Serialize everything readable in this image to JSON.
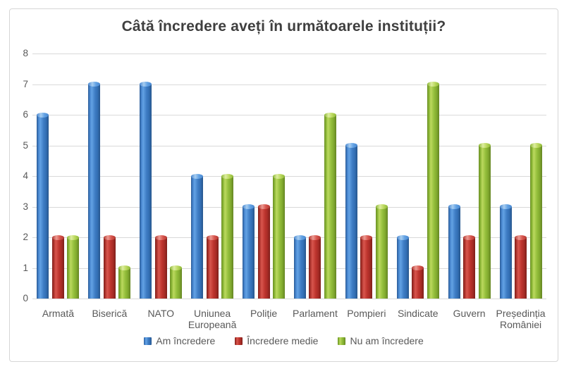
{
  "page": {
    "background_color": "#ffffff",
    "frame_border_color": "#d6d6d6"
  },
  "chart_data": {
    "type": "bar",
    "title": "Câtă încredere aveți în următoarele instituții?",
    "title_color": "#3f3f3f",
    "axis_text_color": "#595959",
    "gridline_color": "#d9d9d9",
    "categories": [
      "Armată",
      "Biserică",
      "NATO",
      "Uniunea Europeană",
      "Poliție",
      "Parlament",
      "Pompieri",
      "Sindicate",
      "Guvern",
      "Președinția României"
    ],
    "series": [
      {
        "name": "Am încredere",
        "color": "#3b7ac3",
        "values": [
          6,
          7,
          7,
          4,
          3,
          2,
          5,
          2,
          3,
          3
        ]
      },
      {
        "name": "Încredere medie",
        "color": "#bd342d",
        "values": [
          2,
          2,
          2,
          2,
          3,
          2,
          2,
          1,
          2,
          2
        ]
      },
      {
        "name": "Nu am încredere",
        "color": "#93be3b",
        "values": [
          2,
          1,
          1,
          4,
          4,
          6,
          3,
          7,
          5,
          5
        ]
      }
    ],
    "xlabel": "",
    "ylabel": "",
    "ylim": [
      0,
      8
    ],
    "y_ticks": [
      0,
      1,
      2,
      3,
      4,
      5,
      6,
      7,
      8
    ],
    "grid": true,
    "legend_position": "bottom",
    "bar_style": "glossy-3d-cylinder"
  }
}
